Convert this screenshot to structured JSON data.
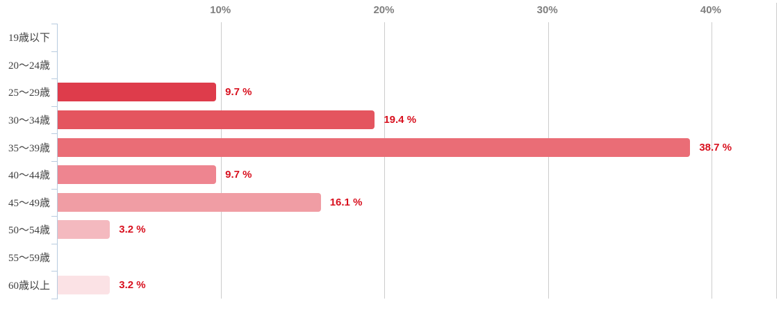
{
  "chart_data": {
    "type": "bar",
    "orientation": "horizontal",
    "title": "",
    "xlabel": "",
    "ylabel": "",
    "xlim": [
      0,
      44
    ],
    "x_tick_values": [
      10,
      20,
      30,
      40
    ],
    "x_tick_labels": [
      "10%",
      "20%",
      "30%",
      "40%"
    ],
    "grid": true,
    "legend": false,
    "categories": [
      "19歳以下",
      "20〜24歳",
      "25〜29歳",
      "30〜34歳",
      "35〜39歳",
      "40〜44歳",
      "45〜49歳",
      "50〜54歳",
      "55〜59歳",
      "60歳以上"
    ],
    "values": [
      0,
      0,
      9.7,
      19.4,
      38.7,
      9.7,
      16.1,
      3.2,
      0,
      3.2
    ],
    "value_labels": [
      "",
      "",
      "9.7 %",
      "19.4 %",
      "38.7 %",
      "9.7 %",
      "16.1 %",
      "3.2 %",
      "",
      "3.2 %"
    ],
    "bar_colors": [
      "",
      "",
      "#de3c4b",
      "#e4555f",
      "#ea6d76",
      "#ee8590",
      "#f09da4",
      "#f4b9bf",
      "",
      "#fbe2e5"
    ]
  },
  "style_colors": {
    "value_label": "#d8101e",
    "tick_label": "#7f7f7f",
    "category_label": "#404040",
    "gridline": "#cccccc",
    "axis": "#b7cbdf",
    "background": "#ffffff"
  }
}
